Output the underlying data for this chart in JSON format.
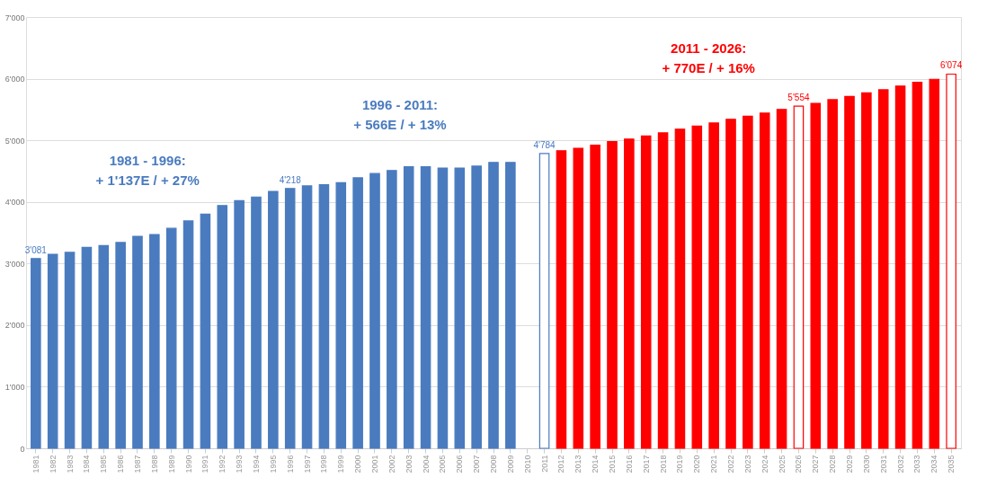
{
  "chart_data": {
    "type": "bar",
    "categories": [
      "1981",
      "1982",
      "1983",
      "1984",
      "1985",
      "1986",
      "1987",
      "1988",
      "1989",
      "1990",
      "1991",
      "1992",
      "1993",
      "1994",
      "1995",
      "1996",
      "1997",
      "1998",
      "1999",
      "2000",
      "2001",
      "2002",
      "2003",
      "2004",
      "2005",
      "2006",
      "2007",
      "2008",
      "2009",
      "2010",
      "2011",
      "2012",
      "2013",
      "2014",
      "2015",
      "2016",
      "2017",
      "2018",
      "2019",
      "2020",
      "2021",
      "2022",
      "2023",
      "2024",
      "2025",
      "2026",
      "2027",
      "2028",
      "2029",
      "2030",
      "2031",
      "2032",
      "2033",
      "2034",
      "2035"
    ],
    "values": [
      3081,
      3150,
      3180,
      3260,
      3290,
      3340,
      3440,
      3470,
      3570,
      3690,
      3800,
      3940,
      4020,
      4080,
      4170,
      4218,
      4260,
      4280,
      4310,
      4390,
      4460,
      4510,
      4570,
      4570,
      4550,
      4550,
      4580,
      4640,
      4640,
      null,
      4784,
      4830,
      4870,
      4920,
      4980,
      5020,
      5070,
      5120,
      5180,
      5230,
      5280,
      5340,
      5390,
      5440,
      5500,
      5554,
      5600,
      5660,
      5710,
      5770,
      5820,
      5880,
      5940,
      5990,
      6074
    ],
    "colors": [
      "#4a7bbf",
      "#4a7bbf",
      "#4a7bbf",
      "#4a7bbf",
      "#4a7bbf",
      "#4a7bbf",
      "#4a7bbf",
      "#4a7bbf",
      "#4a7bbf",
      "#4a7bbf",
      "#4a7bbf",
      "#4a7bbf",
      "#4a7bbf",
      "#4a7bbf",
      "#4a7bbf",
      "#4a7bbf",
      "#4a7bbf",
      "#4a7bbf",
      "#4a7bbf",
      "#4a7bbf",
      "#4a7bbf",
      "#4a7bbf",
      "#4a7bbf",
      "#4a7bbf",
      "#4a7bbf",
      "#4a7bbf",
      "#4a7bbf",
      "#4a7bbf",
      "#4a7bbf",
      "#4a7bbf",
      "#ffffff",
      "#ff0000",
      "#ff0000",
      "#ff0000",
      "#ff0000",
      "#ff0000",
      "#ff0000",
      "#ff0000",
      "#ff0000",
      "#ff0000",
      "#ff0000",
      "#ff0000",
      "#ff0000",
      "#ff0000",
      "#ff0000",
      "#ffffff",
      "#ff0000",
      "#ff0000",
      "#ff0000",
      "#ff0000",
      "#ff0000",
      "#ff0000",
      "#ff0000",
      "#ff0000",
      "#ffffff"
    ],
    "value_labels": [
      "3'081",
      null,
      null,
      null,
      null,
      null,
      null,
      null,
      null,
      null,
      null,
      null,
      null,
      null,
      null,
      "4'218",
      null,
      null,
      null,
      null,
      null,
      null,
      null,
      null,
      null,
      null,
      null,
      null,
      null,
      null,
      "4'784",
      null,
      null,
      null,
      null,
      null,
      null,
      null,
      null,
      null,
      null,
      null,
      null,
      null,
      null,
      "5'554",
      null,
      null,
      null,
      null,
      null,
      null,
      null,
      null,
      "6'074"
    ],
    "ylim": [
      0,
      7000
    ],
    "yticks": [
      0,
      {
        "value": 1000,
        "label": "1'000"
      },
      {
        "value": 2000,
        "label": "2'000"
      },
      {
        "value": 3000,
        "label": "3'000"
      },
      {
        "value": 4000,
        "label": "4'000"
      },
      {
        "value": 5000,
        "label": "5'000"
      },
      {
        "value": 6000,
        "label": "6'000"
      },
      {
        "value": 7000,
        "label": "7'000"
      }
    ],
    "grid": "y",
    "annotations": [
      "1981 - 1996:\n+ 1'137E / + 27%",
      "1996 - 2011:\n+ 566E / + 13%",
      "2011 - 2026:\n+ 770E / + 16%"
    ]
  }
}
